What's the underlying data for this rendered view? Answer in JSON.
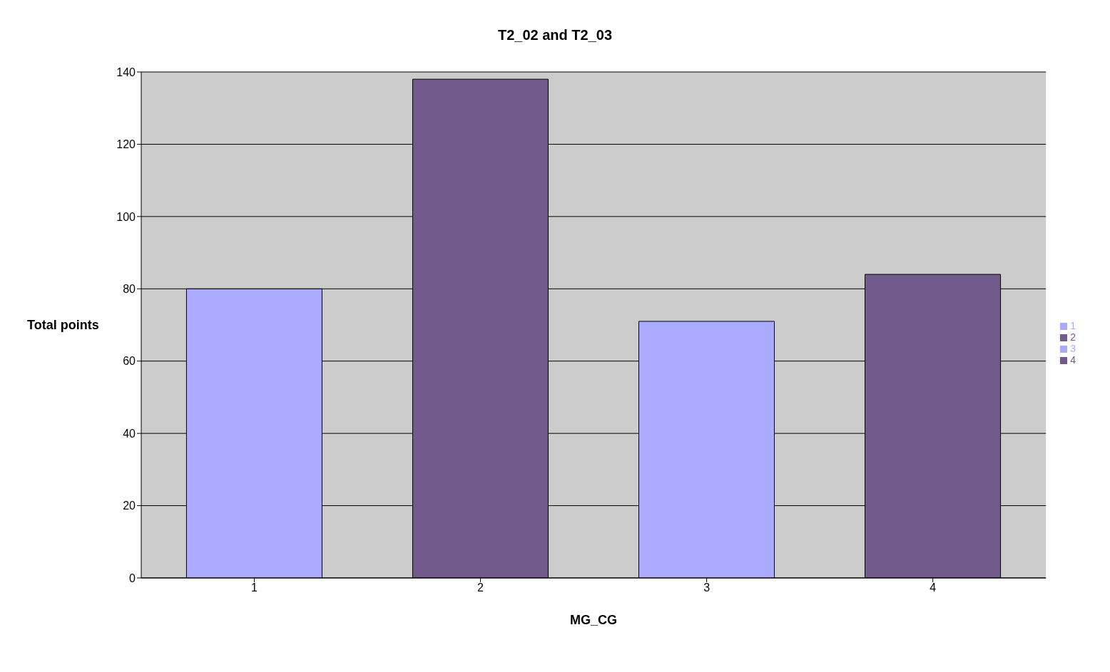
{
  "chart_data": {
    "type": "bar",
    "stacked": true,
    "title": "T2_02 and T2_03",
    "xlabel": "MG_CG",
    "ylabel": "Total  points",
    "categories": [
      "1",
      "2",
      "3",
      "4"
    ],
    "series": [
      {
        "name": "1",
        "color": "#aaaaff",
        "values": [
          80,
          null,
          null,
          null
        ]
      },
      {
        "name": "2",
        "color": "#735a8c",
        "values": [
          null,
          138,
          null,
          null
        ]
      },
      {
        "name": "3",
        "color": "#aaaaff",
        "values": [
          null,
          null,
          71,
          null
        ]
      },
      {
        "name": "4",
        "color": "#735a8c",
        "values": [
          null,
          null,
          null,
          84
        ]
      }
    ],
    "ylim": [
      0,
      140
    ],
    "yticks": [
      0,
      20,
      40,
      60,
      80,
      100,
      120,
      140
    ],
    "grid": "y",
    "legend": "right"
  }
}
